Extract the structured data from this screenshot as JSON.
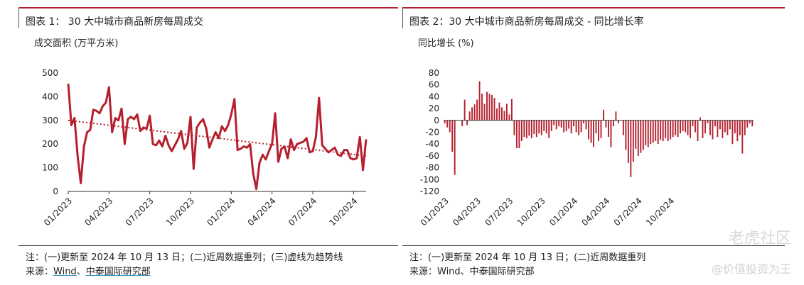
{
  "left": {
    "title": "图表 1：  30 大中城市商品新房每周成交",
    "unit": "成交面积 (万平方米)",
    "note": "注：(一)更新至 2024 年 10 月 13 日；(二)近周数据重列；(三)虚线为趋势线",
    "source_prefix": "来源：",
    "source_wind": "Wind",
    "source_sep": "、",
    "source_cicc": "中泰国际研究部"
  },
  "right": {
    "title": "图表 2：30 大中城市商品新房每周成交 - 同比增长率",
    "unit": "同比增长 (%)",
    "note": "注：(一)更新至 2024 年 10 月 13 日；(二)近周数据重列",
    "source": "来源：Wind、中泰国际研究部"
  },
  "watermark": "老虎社区",
  "watermark_sub": "@价值投资为王",
  "colors": {
    "accent": "#b5202e",
    "trend": "#b5202e"
  },
  "chart_data": [
    {
      "type": "line",
      "title": "图表 1：  30 大中城市商品新房每周成交",
      "ylabel": "成交面积 (万平方米)",
      "ylim": [
        0,
        500
      ],
      "yticks": [
        "0",
        "100",
        "200",
        "300",
        "400",
        "500"
      ],
      "xticks": [
        "01/2023",
        "04/2023",
        "07/2023",
        "10/2023",
        "01/2024",
        "04/2024",
        "07/2024",
        "10/2024"
      ],
      "trend": {
        "start": 300,
        "end": 150,
        "style": "dotted"
      },
      "values": [
        455,
        280,
        310,
        150,
        35,
        190,
        250,
        260,
        345,
        340,
        330,
        360,
        375,
        440,
        250,
        310,
        300,
        350,
        200,
        305,
        315,
        305,
        325,
        255,
        270,
        265,
        320,
        200,
        195,
        215,
        190,
        235,
        195,
        170,
        195,
        220,
        255,
        180,
        205,
        315,
        95,
        270,
        290,
        305,
        265,
        185,
        220,
        250,
        225,
        275,
        255,
        280,
        325,
        390,
        175,
        180,
        190,
        185,
        200,
        75,
        10,
        120,
        155,
        135,
        170,
        200,
        330,
        125,
        180,
        190,
        140,
        220,
        175,
        200,
        205,
        210,
        225,
        165,
        170,
        230,
        395,
        195,
        180,
        165,
        175,
        185,
        155,
        150,
        175,
        175,
        140,
        135,
        140,
        230,
        90,
        220
      ]
    },
    {
      "type": "bar",
      "title": "图表 2：30 大中城市商品新房每周成交 - 同比增长率",
      "ylabel": "同比增长 (%)",
      "ylim": [
        -120,
        80
      ],
      "yticks": [
        "-120",
        "-100",
        "-80",
        "-60",
        "-40",
        "-20",
        "0",
        "20",
        "40",
        "60",
        "80"
      ],
      "xticks": [
        "01/2023",
        "04/2023",
        "07/2023",
        "10/2023",
        "01/2024",
        "04/2024",
        "07/2024",
        "10/2024"
      ],
      "values": [
        -5,
        -12,
        -20,
        -53,
        -92,
        0,
        0,
        -10,
        35,
        -8,
        15,
        22,
        27,
        35,
        66,
        45,
        28,
        48,
        45,
        43,
        38,
        20,
        30,
        22,
        16,
        28,
        10,
        36,
        -25,
        -47,
        -47,
        -35,
        -28,
        -30,
        -26,
        -30,
        -23,
        -28,
        -22,
        -25,
        -18,
        -22,
        -30,
        -18,
        -8,
        -15,
        -10,
        -12,
        -20,
        -18,
        -14,
        -22,
        -10,
        -20,
        -25,
        -20,
        -5,
        -15,
        -32,
        -38,
        -45,
        -22,
        -35,
        -30,
        18,
        -12,
        -28,
        -45,
        -10,
        15,
        -5,
        0,
        -25,
        -50,
        -72,
        -96,
        -70,
        -48,
        -60,
        -55,
        -50,
        -42,
        -45,
        -40,
        -38,
        -35,
        -40,
        -33,
        -35,
        -30,
        -35,
        -32,
        -28,
        -25,
        -28,
        -22,
        -18,
        -20,
        -25,
        -30,
        -10,
        -20,
        -35,
        5,
        -30,
        -22,
        -5,
        -25,
        -32,
        -10,
        -28,
        -15,
        -30,
        -20,
        -25,
        -15,
        -40,
        -22,
        -35,
        -25,
        -56,
        -25,
        -12,
        -5,
        -10
      ]
    }
  ]
}
